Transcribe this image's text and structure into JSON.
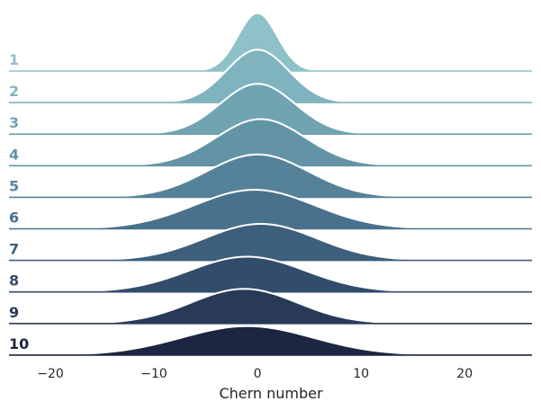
{
  "chart_data": {
    "type": "area",
    "xlabel": "Chern number",
    "xlim": [
      -24,
      26.5
    ],
    "xticks": [
      -20,
      -10,
      0,
      10,
      20
    ],
    "grid": false,
    "series": [
      {
        "name": "1",
        "mean": 0.0,
        "sd": 1.9,
        "peak": 0.92,
        "xmin": -6,
        "xmax": 6,
        "color": "#8fc1c8"
      },
      {
        "name": "2",
        "mean": 0.0,
        "sd": 3.0,
        "peak": 0.84,
        "xmin": -9,
        "xmax": 9,
        "color": "#7fb3bd"
      },
      {
        "name": "3",
        "mean": 0.0,
        "sd": 3.6,
        "peak": 0.8,
        "xmin": -11,
        "xmax": 11,
        "color": "#70a4b1"
      },
      {
        "name": "4",
        "mean": 0.3,
        "sd": 4.3,
        "peak": 0.74,
        "xmin": -13,
        "xmax": 13,
        "color": "#6394a6"
      },
      {
        "name": "5",
        "mean": 0.0,
        "sd": 4.9,
        "peak": 0.68,
        "xmin": -15,
        "xmax": 15,
        "color": "#568299"
      },
      {
        "name": "6",
        "mean": -0.3,
        "sd": 5.8,
        "peak": 0.62,
        "xmin": -18,
        "xmax": 18,
        "color": "#49718b"
      },
      {
        "name": "7",
        "mean": 0.3,
        "sd": 5.4,
        "peak": 0.58,
        "xmin": -16,
        "xmax": 17,
        "color": "#3d5f7c"
      },
      {
        "name": "8",
        "mean": -1.0,
        "sd": 5.6,
        "peak": 0.56,
        "xmin": -17,
        "xmax": 15,
        "color": "#324c6b"
      },
      {
        "name": "9",
        "mean": -1.3,
        "sd": 5.1,
        "peak": 0.55,
        "xmin": -19,
        "xmax": 16,
        "color": "#283a58"
      },
      {
        "name": "10",
        "mean": -1.0,
        "sd": 6.3,
        "peak": 0.46,
        "xmin": -22,
        "xmax": 24,
        "color": "#1d2641"
      }
    ]
  }
}
